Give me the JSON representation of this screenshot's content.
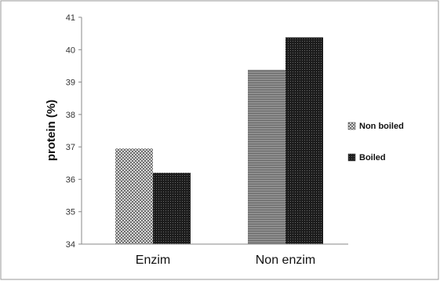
{
  "chart_data": {
    "type": "bar",
    "title": "",
    "xlabel": "",
    "ylabel": "protein (%)",
    "ylim": [
      34,
      41
    ],
    "yticks": [
      34,
      35,
      36,
      37,
      38,
      39,
      40,
      41
    ],
    "categories": [
      "Enzim",
      "Non enzim"
    ],
    "series": [
      {
        "name": "Non boiled",
        "values": [
          36.95,
          39.38
        ]
      },
      {
        "name": "Boiled",
        "values": [
          36.2,
          40.38
        ]
      }
    ],
    "legend": "right",
    "grid": false
  }
}
